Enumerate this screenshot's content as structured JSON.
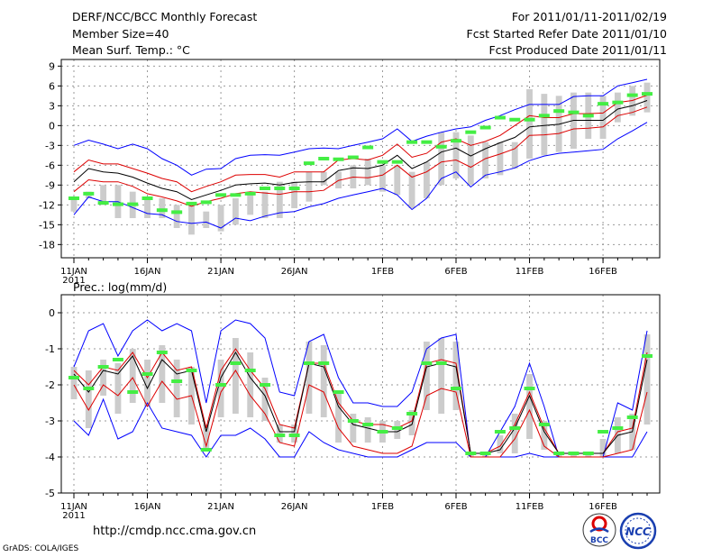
{
  "header": {
    "title": "DERF/NCC/BCC Monthly Forecast",
    "member_size": "Member Size=40",
    "variable": "Mean Surf. Temp.: °C",
    "period": "For 2011/01/11-2011/02/19",
    "started": "Fcst Started Refer Date 2011/01/10",
    "produced": "Fcst Produced Date 2011/01/11"
  },
  "footer": {
    "url": "http://cmdp.ncc.cma.gov.cn",
    "grads": "GrADS: COLA/IGES",
    "logo_bcc_text": "BCC",
    "logo_ncc_text": "NCC"
  },
  "colors": {
    "envelope": "#0000ff",
    "ensemble_mean": "#000000",
    "spread": "#dd0000",
    "box": "#cccccc",
    "observation": "#44ee44",
    "grid": "#999999"
  },
  "chart_data": [
    {
      "type": "line",
      "title": "Mean Surf. Temp.: °C",
      "x_tick_labels": [
        "11JAN",
        "16JAN",
        "21JAN",
        "26JAN",
        "1FEB",
        "6FEB",
        "11FEB",
        "16FEB"
      ],
      "x_tick_days": [
        1,
        6,
        11,
        16,
        22,
        27,
        32,
        37
      ],
      "x_sub_label": "2011",
      "x_range": [
        1,
        40
      ],
      "ylim": [
        -20,
        10
      ],
      "yticks": [
        9,
        6,
        3,
        0,
        -3,
        -6,
        -9,
        -12,
        -15,
        -18
      ],
      "series": [
        {
          "name": "max",
          "values": [
            -3,
            -2.2,
            -2.8,
            -3.5,
            -2.8,
            -3.5,
            -5,
            -6,
            -7.5,
            -6.6,
            -6.5,
            -5,
            -4.5,
            -4.4,
            -4.5,
            -4,
            -3.5,
            -3.4,
            -3.5,
            -3,
            -2.5,
            -2,
            -0.5,
            -2.4,
            -1.6,
            -1,
            -0.5,
            -0.2,
            0.8,
            1.5,
            2.4,
            3.2,
            3.2,
            3.2,
            4.4,
            4.5,
            4.5,
            6,
            6.5,
            7
          ]
        },
        {
          "name": "upper",
          "values": [
            -7,
            -5.2,
            -5.8,
            -5.8,
            -6.5,
            -7.2,
            -8,
            -8.5,
            -10,
            -9.2,
            -8.5,
            -7.5,
            -7.4,
            -7.4,
            -7.8,
            -7,
            -7,
            -7,
            -5.2,
            -5,
            -5.2,
            -4.5,
            -2.8,
            -4.8,
            -4.2,
            -2.5,
            -2,
            -3,
            -2.4,
            -1.5,
            0,
            1.5,
            1.2,
            1.2,
            1.8,
            1.8,
            1.9,
            3.5,
            3.8,
            4.6
          ]
        },
        {
          "name": "mean",
          "values": [
            -8.5,
            -6.5,
            -7,
            -7.2,
            -7.8,
            -8.7,
            -9.5,
            -10,
            -11.2,
            -10.5,
            -9.8,
            -9,
            -8.8,
            -8.7,
            -9,
            -8.6,
            -8.5,
            -8.5,
            -6.8,
            -6.4,
            -6.5,
            -6,
            -4.5,
            -6.5,
            -5.5,
            -4,
            -3.4,
            -4.6,
            -3.5,
            -2.6,
            -1.8,
            -0.2,
            0,
            0.2,
            0.8,
            0.8,
            0.8,
            2.5,
            3,
            3.8
          ]
        },
        {
          "name": "lower",
          "values": [
            -10,
            -8.2,
            -8.5,
            -8.5,
            -9.2,
            -10.3,
            -10.8,
            -11.4,
            -12.2,
            -11.5,
            -11,
            -10.3,
            -10,
            -10.2,
            -10.4,
            -10,
            -10,
            -9.8,
            -8.3,
            -7.8,
            -7.9,
            -7.5,
            -6,
            -7.8,
            -7,
            -5.5,
            -5.2,
            -6.3,
            -5,
            -4.3,
            -3.5,
            -1.5,
            -1.4,
            -1.2,
            -0.5,
            -0.4,
            -0.2,
            1.5,
            2,
            2.8
          ]
        },
        {
          "name": "min",
          "values": [
            -13.5,
            -10.8,
            -11.5,
            -11.5,
            -12.4,
            -13.3,
            -13.5,
            -14.5,
            -14.8,
            -14.6,
            -15.5,
            -14,
            -14.4,
            -13.7,
            -13.2,
            -13,
            -12.3,
            -11.8,
            -11,
            -10.5,
            -10,
            -9.5,
            -10.5,
            -12.7,
            -11,
            -8,
            -7,
            -9.3,
            -7.5,
            -7,
            -6.4,
            -5.3,
            -4.6,
            -4.2,
            -4,
            -3.8,
            -3.6,
            -2,
            -0.8,
            0.5
          ]
        },
        {
          "name": "obs",
          "values": [
            -11,
            -10.3,
            -11.7,
            -11.9,
            -11.9,
            -11,
            -12.8,
            -13.1,
            -11.8,
            -11.6,
            -10.5,
            -10.5,
            -10.3,
            -9.5,
            -9.5,
            -9.5,
            -5.7,
            -5,
            -5.1,
            -4.8,
            -3.3,
            -5.5,
            -5.5,
            -2.5,
            -2.5,
            -3.2,
            -2.3,
            -1,
            -0.3,
            1.2,
            0.9,
            0.9,
            1.5,
            2.2,
            2,
            1.5,
            3.3,
            3.5,
            4.6,
            4.8
          ]
        },
        {
          "name": "box_high",
          "values": [
            -11,
            -10,
            -9,
            -9,
            -10,
            -11,
            -11,
            -12,
            -12,
            -13,
            -12,
            -11,
            -10,
            -10,
            -8.5,
            -8.5,
            -7,
            -7,
            -7,
            -6,
            -5,
            -6,
            -6,
            -7,
            -5.5,
            -1,
            -1,
            -1.5,
            -2.5,
            -2.5,
            -2.5,
            5.5,
            4.8,
            4.5,
            5,
            5,
            4.5,
            5,
            6,
            6.5
          ]
        },
        {
          "name": "box_low",
          "values": [
            -13,
            -11,
            -12,
            -14,
            -14,
            -14,
            -14,
            -15.5,
            -16.5,
            -15.5,
            -16,
            -15,
            -13.5,
            -14,
            -14,
            -12.5,
            -11.5,
            -9,
            -9.5,
            -9.5,
            -9,
            -10,
            -10.5,
            -12.5,
            -11,
            -9,
            -8,
            -9,
            -8,
            -7.5,
            -6.5,
            -5,
            -4.5,
            -4,
            -3.5,
            -2,
            -2,
            0.5,
            1.5,
            2
          ]
        }
      ]
    },
    {
      "type": "line",
      "title": "Prec.: log(mm/d)",
      "x_tick_labels": [
        "11JAN",
        "16JAN",
        "21JAN",
        "26JAN",
        "1FEB",
        "6FEB",
        "11FEB",
        "16FEB"
      ],
      "x_tick_days": [
        1,
        6,
        11,
        16,
        22,
        27,
        32,
        37
      ],
      "x_sub_label": "2011",
      "x_range": [
        1,
        40
      ],
      "ylim": [
        -5,
        0.5
      ],
      "yticks": [
        0,
        -1,
        -2,
        -3,
        -4,
        -5
      ],
      "series": [
        {
          "name": "max",
          "values": [
            -1.5,
            -0.5,
            -0.3,
            -1.2,
            -0.5,
            -0.2,
            -0.5,
            -0.3,
            -0.5,
            -2.5,
            -0.5,
            -0.2,
            -0.3,
            -0.7,
            -2.2,
            -2.3,
            -0.8,
            -0.6,
            -1.8,
            -2.5,
            -2.5,
            -2.6,
            -2.6,
            -2.2,
            -1,
            -0.7,
            -0.6,
            -4,
            -4,
            -3.3,
            -2.6,
            -1.4,
            -2.6,
            -4,
            -4,
            -4,
            -4,
            -2.5,
            -2.7,
            -0.5
          ]
        },
        {
          "name": "upper",
          "values": [
            -1.6,
            -2,
            -1.5,
            -1.6,
            -1.1,
            -1.8,
            -1.1,
            -1.6,
            -1.5,
            -3.2,
            -1.6,
            -1,
            -1.6,
            -2.1,
            -3.1,
            -3.2,
            -1.4,
            -1.4,
            -2.5,
            -3,
            -3.1,
            -3.1,
            -3.2,
            -3,
            -1.4,
            -1.3,
            -1.4,
            -3.9,
            -3.9,
            -3.7,
            -3.1,
            -2.2,
            -3.2,
            -3.9,
            -3.9,
            -3.9,
            -3.9,
            -3.3,
            -3.2,
            -1.1
          ]
        },
        {
          "name": "mean",
          "values": [
            -1.7,
            -2.2,
            -1.6,
            -1.7,
            -1.2,
            -2.1,
            -1.3,
            -1.7,
            -1.6,
            -3.3,
            -1.8,
            -1.1,
            -1.8,
            -2.3,
            -3.3,
            -3.3,
            -1.4,
            -1.5,
            -2.6,
            -3.1,
            -3.2,
            -3.3,
            -3.3,
            -3.1,
            -1.5,
            -1.4,
            -1.5,
            -3.9,
            -3.9,
            -3.8,
            -3.2,
            -2.3,
            -3.3,
            -3.9,
            -3.9,
            -3.9,
            -3.9,
            -3.4,
            -3.3,
            -1.3
          ]
        },
        {
          "name": "lower",
          "values": [
            -2,
            -2.7,
            -2,
            -2.3,
            -1.8,
            -2.6,
            -1.9,
            -2.4,
            -2.3,
            -3.7,
            -2.2,
            -1.6,
            -2.3,
            -2.8,
            -3.6,
            -3.7,
            -2,
            -2.2,
            -3.2,
            -3.7,
            -3.8,
            -3.9,
            -3.9,
            -3.7,
            -2.3,
            -2.1,
            -2.2,
            -4,
            -4,
            -4,
            -3.5,
            -2.7,
            -3.7,
            -4,
            -4,
            -4,
            -4,
            -3.9,
            -3.8,
            -2.2
          ]
        },
        {
          "name": "min",
          "values": [
            -3,
            -3.4,
            -2.4,
            -3.5,
            -3.3,
            -2.5,
            -3.2,
            -3.3,
            -3.4,
            -4,
            -3.4,
            -3.4,
            -3.2,
            -3.5,
            -4,
            -4,
            -3.3,
            -3.6,
            -3.8,
            -3.9,
            -4,
            -4,
            -4,
            -3.8,
            -3.6,
            -3.6,
            -3.6,
            -4,
            -4,
            -4,
            -4,
            -3.9,
            -4,
            -4,
            -4,
            -4,
            -4,
            -4,
            -4,
            -3.3
          ]
        },
        {
          "name": "obs",
          "values": [
            -1.8,
            -2.1,
            -1.5,
            -1.3,
            -2.2,
            -1.7,
            -1.1,
            -1.9,
            -1.6,
            -3.8,
            -2,
            -1.4,
            -1.6,
            -2,
            -3.4,
            -3.4,
            -1.4,
            -1.4,
            -2.2,
            -3,
            -3.1,
            -3.3,
            -3.2,
            -2.8,
            -1.4,
            -1.4,
            -2.1,
            -3.9,
            -3.9,
            -3.3,
            -3.2,
            -2.1,
            -3.1,
            -3.9,
            -3.9,
            -3.9,
            -3.3,
            -3.2,
            -2.9,
            -1.2
          ]
        },
        {
          "name": "box_high",
          "values": [
            -1.5,
            -1.6,
            -1.3,
            -1.4,
            -1,
            -1.3,
            -0.9,
            -1.3,
            -1.5,
            -3.1,
            -1.3,
            -0.7,
            -1.1,
            -1.8,
            -3.1,
            -3.1,
            -0.8,
            -0.9,
            -2.2,
            -2.8,
            -2.9,
            -3,
            -3,
            -2.7,
            -0.8,
            -0.7,
            -0.8,
            -3.9,
            -3.9,
            -3.4,
            -2.8,
            -1.7,
            -3,
            -3.9,
            -3.9,
            -3.9,
            -3.5,
            -2.9,
            -2.8,
            -0.6
          ]
        },
        {
          "name": "box_low",
          "values": [
            -2.4,
            -3.2,
            -2.3,
            -2.8,
            -2.5,
            -2.6,
            -2.5,
            -2.9,
            -3.1,
            -3.8,
            -2.9,
            -2.8,
            -2.9,
            -3,
            -3.6,
            -3.6,
            -2.8,
            -2.9,
            -3.6,
            -3.6,
            -3.6,
            -3.6,
            -3.5,
            -3.4,
            -2.7,
            -2.8,
            -2.7,
            -4,
            -4,
            -3.9,
            -3.9,
            -3.5,
            -3.8,
            -4,
            -4,
            -4,
            -4,
            -3.9,
            -3.8,
            -3.1
          ]
        }
      ]
    }
  ]
}
